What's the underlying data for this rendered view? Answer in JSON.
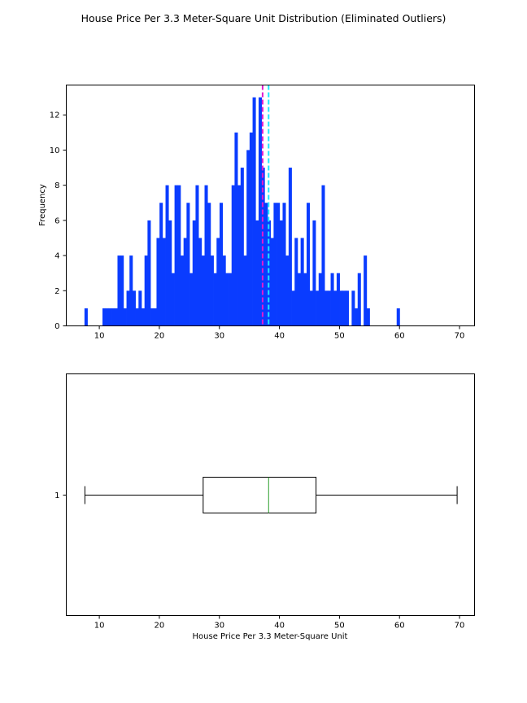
{
  "figure": {
    "suptitle": "House Price Per 3.3 Meter-Square Unit Distribution (Eliminated Outliers)"
  },
  "chart_data": [
    {
      "type": "histogram",
      "ylabel": "Frequency",
      "xlim": [
        4.5,
        72.5
      ],
      "ylim": [
        0,
        13.7
      ],
      "xticks": [
        10,
        20,
        30,
        40,
        50,
        60,
        70
      ],
      "yticks": [
        0,
        2,
        4,
        6,
        8,
        10,
        12
      ],
      "bin_start": 7.53,
      "bin_width": 0.5,
      "counts": [
        1,
        0,
        0,
        0,
        0,
        0,
        1,
        1,
        1,
        1,
        1,
        4,
        4,
        1,
        2,
        4,
        2,
        1,
        2,
        1,
        4,
        6,
        1,
        1,
        5,
        7,
        5,
        8,
        6,
        3,
        8,
        8,
        4,
        5,
        7,
        3,
        6,
        8,
        5,
        4,
        8,
        7,
        4,
        3,
        5,
        7,
        4,
        3,
        3,
        8,
        11,
        8,
        9,
        4,
        10,
        11,
        13,
        6,
        13,
        9,
        7,
        6,
        5,
        7,
        7,
        6,
        7,
        4,
        9,
        2,
        5,
        3,
        5,
        3,
        7,
        2,
        6,
        2,
        3,
        8,
        2,
        2,
        3,
        2,
        3,
        2,
        2,
        2,
        0,
        2,
        1,
        3,
        0,
        4,
        1,
        0,
        0,
        0,
        0,
        0,
        0,
        0,
        0,
        0,
        1,
        0,
        0,
        0,
        0,
        0,
        0,
        0,
        0,
        0,
        0,
        0,
        0,
        0,
        0,
        0,
        0,
        0
      ],
      "bar_color": "#0a3cff",
      "vlines": [
        {
          "x": 37.2,
          "color": "#e01ccf",
          "style": "dashed"
        },
        {
          "x": 38.2,
          "color": "#1ce8ff",
          "style": "dashed"
        }
      ]
    },
    {
      "type": "boxplot",
      "xlabel": "House Price Per 3.3 Meter-Square Unit",
      "xlim": [
        4.5,
        72.5
      ],
      "xticks": [
        10,
        20,
        30,
        40,
        50,
        60,
        70
      ],
      "ytick_label": "1",
      "whisker_low": 7.6,
      "q1": 27.3,
      "median": 38.2,
      "q3": 46.1,
      "whisker_high": 69.6,
      "median_color": "#2ca02c"
    }
  ]
}
